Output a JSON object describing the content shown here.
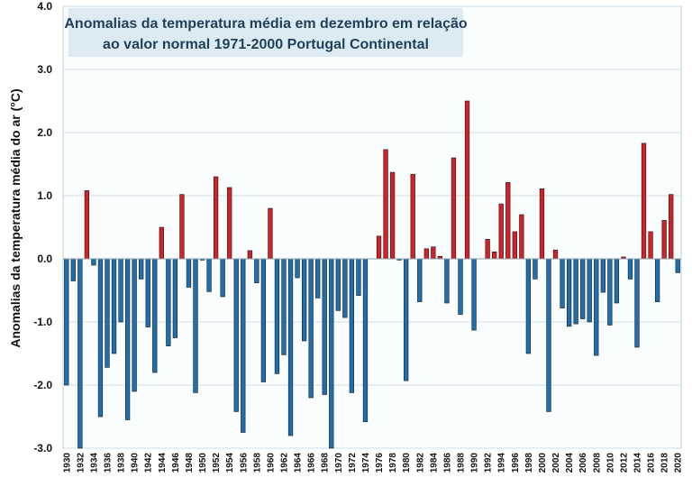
{
  "chart_data": {
    "type": "bar",
    "title_lines": [
      "Anomalias da temperatura média em dezembro em relação",
      "ao valor normal 1971-2000 Portugal Continental"
    ],
    "ylabel": "Anomalias da temperatura média do ar (°C)",
    "xlabel": "",
    "ylim": [
      -3.0,
      4.0
    ],
    "yticks": [
      "4.0",
      "3.0",
      "2.0",
      "1.0",
      "0.0",
      "-1.0",
      "-2.0",
      "-3.0"
    ],
    "ytick_values": [
      4,
      3,
      2,
      1,
      0,
      -1,
      -2,
      -3
    ],
    "xtick_labels": [
      "1930",
      "1932",
      "1934",
      "1936",
      "1938",
      "1940",
      "1942",
      "1944",
      "1946",
      "1948",
      "1950",
      "1952",
      "1954",
      "1956",
      "1958",
      "1960",
      "1962",
      "1964",
      "1966",
      "1968",
      "1970",
      "1972",
      "1974",
      "1976",
      "1978",
      "1980",
      "1982",
      "1984",
      "1986",
      "1988",
      "1990",
      "1992",
      "1994",
      "1996",
      "1998",
      "2000",
      "2002",
      "2004",
      "2006",
      "2008",
      "2010",
      "2012",
      "2014",
      "2016",
      "2018",
      "2020"
    ],
    "colors": {
      "positive": "#d42027",
      "negative": "#1f6fae",
      "edge": "#1a1a1a"
    },
    "years": [
      1930,
      1931,
      1932,
      1933,
      1934,
      1935,
      1936,
      1937,
      1938,
      1939,
      1940,
      1941,
      1942,
      1943,
      1944,
      1945,
      1946,
      1947,
      1948,
      1949,
      1950,
      1951,
      1952,
      1953,
      1954,
      1955,
      1956,
      1957,
      1958,
      1959,
      1960,
      1961,
      1962,
      1963,
      1964,
      1965,
      1966,
      1967,
      1968,
      1969,
      1970,
      1971,
      1972,
      1973,
      1974,
      1975,
      1976,
      1977,
      1978,
      1979,
      1980,
      1981,
      1982,
      1983,
      1984,
      1985,
      1986,
      1987,
      1988,
      1989,
      1990,
      1991,
      1992,
      1993,
      1994,
      1995,
      1996,
      1997,
      1998,
      1999,
      2000,
      2001,
      2002,
      2003,
      2004,
      2005,
      2006,
      2007,
      2008,
      2009,
      2010,
      2011,
      2012,
      2013,
      2014,
      2015,
      2016,
      2017,
      2018,
      2019,
      2020
    ],
    "values": [
      -2.0,
      -0.35,
      -3.0,
      1.08,
      -0.1,
      -2.5,
      -1.72,
      -1.5,
      -1.0,
      -2.55,
      -2.1,
      -0.32,
      -1.08,
      -1.8,
      0.5,
      -1.38,
      -1.25,
      1.02,
      -0.45,
      -2.12,
      -0.02,
      -0.52,
      1.3,
      -0.6,
      1.13,
      -2.42,
      -2.75,
      0.13,
      -0.38,
      -1.95,
      0.8,
      -1.82,
      -1.52,
      -2.8,
      -0.3,
      -1.3,
      -2.2,
      -0.62,
      -2.15,
      -3.0,
      -0.82,
      -0.93,
      -2.12,
      -0.58,
      -2.58,
      0.0,
      0.36,
      1.73,
      1.37,
      -0.02,
      -1.93,
      1.34,
      -0.68,
      0.16,
      0.19,
      0.04,
      -0.7,
      1.6,
      -0.88,
      2.5,
      -1.13,
      0.0,
      0.31,
      0.11,
      0.87,
      1.21,
      0.43,
      0.7,
      -1.5,
      -0.32,
      1.11,
      -2.42,
      0.14,
      -0.78,
      -1.07,
      -1.03,
      -0.95,
      -1.0,
      -1.53,
      -0.53,
      -1.05,
      -0.7,
      0.03,
      -0.32,
      -1.4,
      1.83,
      0.43,
      -0.68,
      0.61,
      1.02,
      -0.22
    ]
  }
}
